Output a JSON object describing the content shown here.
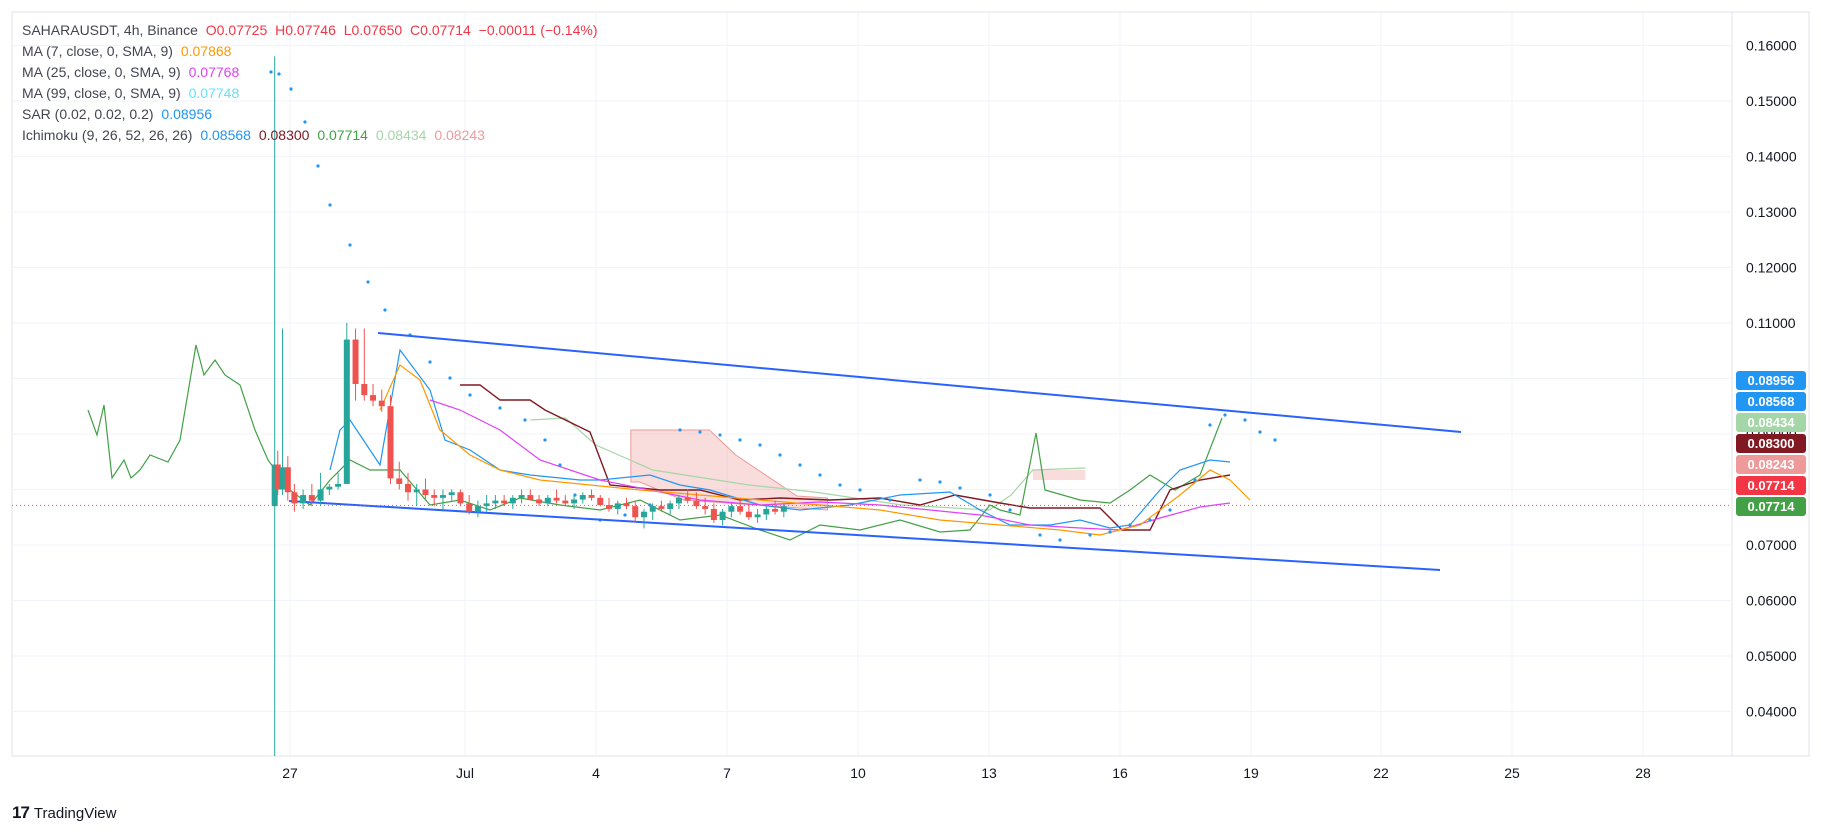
{
  "header": {
    "symbol": "SAHARAUSDT, 4h, Binance",
    "open": "O0.07725",
    "high": "H0.07746",
    "low": "L0.07650",
    "close": "C0.07714",
    "change": "−0.00011 (−0.14%)",
    "ohlc_color": "#f23645"
  },
  "indicators": {
    "ma7": {
      "label": "MA (7, close, 0, SMA, 9)",
      "value": "0.07868",
      "color": "#ff9800"
    },
    "ma25": {
      "label": "MA (25, close, 0, SMA, 9)",
      "value": "0.07768",
      "color": "#e040fb"
    },
    "ma99": {
      "label": "MA (99, close, 0, SMA, 9)",
      "value": "0.07748",
      "color": "#62e3f7"
    },
    "sar": {
      "label": "SAR (0.02, 0.02, 0.2)",
      "value": "0.08956",
      "color": "#2196f3"
    },
    "ichimoku": {
      "label": "Ichimoku (9, 26, 52, 26, 26)",
      "conversion": "0.08568",
      "base": "0.08300",
      "lagging": "0.07714",
      "lead_a": "0.08434",
      "lead_b": "0.08243",
      "colors": {
        "conversion": "#2196f3",
        "base": "#801922",
        "lagging": "#43a047",
        "lead_a": "#a5d6a7",
        "lead_b": "#ef9a9a"
      }
    }
  },
  "price_tags": [
    {
      "value": "0.08956",
      "color": "#2196f3"
    },
    {
      "value": "0.08568",
      "color": "#2196f3"
    },
    {
      "value": "0.08434",
      "color": "#a5d6a7"
    },
    {
      "value": "0.08300",
      "color": "#801922"
    },
    {
      "value": "0.08243",
      "color": "#ef9a9a"
    },
    {
      "value": "0.07714",
      "color": "#f23645"
    },
    {
      "value": "0.07714",
      "color": "#43a047"
    }
  ],
  "brand": {
    "name": "TradingView",
    "mark": "17"
  },
  "chart_data": {
    "type": "candlestick",
    "y_axis_ticks": [
      "0.16000",
      "0.15000",
      "0.14000",
      "0.13000",
      "0.12000",
      "0.11000",
      "0.10000",
      "0.09000",
      "0.08000",
      "0.07000",
      "0.06000",
      "0.05000",
      "0.04000"
    ],
    "x_axis_ticks": [
      "27",
      "Jul",
      "4",
      "7",
      "10",
      "13",
      "16",
      "19",
      "22",
      "25",
      "28"
    ],
    "ylim": [
      0.032,
      0.166
    ],
    "xlim_days": [
      25.3,
      38.5
    ],
    "grid": true,
    "current_price": 0.07714,
    "candles": [
      {
        "t": 26.65,
        "o": 0.077,
        "h": 0.158,
        "l": 0.032,
        "c": 0.0845
      },
      {
        "t": 26.72,
        "o": 0.0845,
        "h": 0.087,
        "l": 0.079,
        "c": 0.08
      },
      {
        "t": 26.83,
        "o": 0.08,
        "h": 0.109,
        "l": 0.079,
        "c": 0.084
      },
      {
        "t": 26.95,
        "o": 0.084,
        "h": 0.086,
        "l": 0.078,
        "c": 0.0795
      },
      {
        "t": 27.1,
        "o": 0.0795,
        "h": 0.081,
        "l": 0.076,
        "c": 0.0775
      },
      {
        "t": 27.3,
        "o": 0.0775,
        "h": 0.08,
        "l": 0.0765,
        "c": 0.079
      },
      {
        "t": 27.5,
        "o": 0.079,
        "h": 0.081,
        "l": 0.077,
        "c": 0.078
      },
      {
        "t": 27.7,
        "o": 0.078,
        "h": 0.083,
        "l": 0.077,
        "c": 0.08
      },
      {
        "t": 27.9,
        "o": 0.08,
        "h": 0.081,
        "l": 0.079,
        "c": 0.0805
      },
      {
        "t": 28.1,
        "o": 0.0805,
        "h": 0.083,
        "l": 0.08,
        "c": 0.081
      },
      {
        "t": 28.3,
        "o": 0.081,
        "h": 0.11,
        "l": 0.081,
        "c": 0.107
      },
      {
        "t": 28.5,
        "o": 0.107,
        "h": 0.109,
        "l": 0.096,
        "c": 0.099
      },
      {
        "t": 28.7,
        "o": 0.099,
        "h": 0.109,
        "l": 0.096,
        "c": 0.097
      },
      {
        "t": 28.9,
        "o": 0.097,
        "h": 0.099,
        "l": 0.095,
        "c": 0.096
      },
      {
        "t": 29.1,
        "o": 0.096,
        "h": 0.098,
        "l": 0.094,
        "c": 0.095
      },
      {
        "t": 29.3,
        "o": 0.095,
        "h": 0.097,
        "l": 0.081,
        "c": 0.082
      },
      {
        "t": 29.5,
        "o": 0.082,
        "h": 0.085,
        "l": 0.08,
        "c": 0.081
      },
      {
        "t": 29.7,
        "o": 0.081,
        "h": 0.083,
        "l": 0.078,
        "c": 0.0795
      },
      {
        "t": 29.9,
        "o": 0.0795,
        "h": 0.081,
        "l": 0.077,
        "c": 0.08
      },
      {
        "t": 30.1,
        "o": 0.08,
        "h": 0.082,
        "l": 0.078,
        "c": 0.079
      },
      {
        "t": 30.3,
        "o": 0.079,
        "h": 0.08,
        "l": 0.077,
        "c": 0.0785
      },
      {
        "t": 30.5,
        "o": 0.0785,
        "h": 0.08,
        "l": 0.076,
        "c": 0.079
      },
      {
        "t": 30.7,
        "o": 0.079,
        "h": 0.08,
        "l": 0.078,
        "c": 0.0795
      },
      {
        "t": 30.9,
        "o": 0.0795,
        "h": 0.08,
        "l": 0.077,
        "c": 0.0775
      },
      {
        "t": 31.1,
        "o": 0.0775,
        "h": 0.079,
        "l": 0.0755,
        "c": 0.076
      },
      {
        "t": 31.3,
        "o": 0.076,
        "h": 0.078,
        "l": 0.075,
        "c": 0.077
      },
      {
        "t": 31.5,
        "o": 0.077,
        "h": 0.079,
        "l": 0.076,
        "c": 0.0775
      },
      {
        "t": 31.7,
        "o": 0.0775,
        "h": 0.079,
        "l": 0.0765,
        "c": 0.078
      },
      {
        "t": 31.9,
        "o": 0.078,
        "h": 0.079,
        "l": 0.077,
        "c": 0.0775
      },
      {
        "t": 32.1,
        "o": 0.0775,
        "h": 0.079,
        "l": 0.0765,
        "c": 0.0785
      },
      {
        "t": 32.3,
        "o": 0.0785,
        "h": 0.08,
        "l": 0.0775,
        "c": 0.079
      },
      {
        "t": 32.5,
        "o": 0.079,
        "h": 0.08,
        "l": 0.078,
        "c": 0.0782
      },
      {
        "t": 32.7,
        "o": 0.0782,
        "h": 0.079,
        "l": 0.077,
        "c": 0.0775
      },
      {
        "t": 32.9,
        "o": 0.0775,
        "h": 0.079,
        "l": 0.077,
        "c": 0.0785
      },
      {
        "t": 33.1,
        "o": 0.0785,
        "h": 0.08,
        "l": 0.0775,
        "c": 0.078
      },
      {
        "t": 33.3,
        "o": 0.078,
        "h": 0.079,
        "l": 0.077,
        "c": 0.0775
      },
      {
        "t": 33.5,
        "o": 0.0775,
        "h": 0.079,
        "l": 0.0765,
        "c": 0.0782
      },
      {
        "t": 33.7,
        "o": 0.0782,
        "h": 0.0795,
        "l": 0.0775,
        "c": 0.079
      },
      {
        "t": 33.9,
        "o": 0.079,
        "h": 0.08,
        "l": 0.078,
        "c": 0.0785
      },
      {
        "t": 34.1,
        "o": 0.0785,
        "h": 0.079,
        "l": 0.077,
        "c": 0.0772
      },
      {
        "t": 34.3,
        "o": 0.0772,
        "h": 0.0785,
        "l": 0.076,
        "c": 0.0765
      },
      {
        "t": 34.5,
        "o": 0.0765,
        "h": 0.078,
        "l": 0.0755,
        "c": 0.0775
      },
      {
        "t": 34.7,
        "o": 0.0775,
        "h": 0.0785,
        "l": 0.0765,
        "c": 0.077
      },
      {
        "t": 34.9,
        "o": 0.077,
        "h": 0.078,
        "l": 0.074,
        "c": 0.075
      },
      {
        "t": 35.1,
        "o": 0.075,
        "h": 0.0765,
        "l": 0.073,
        "c": 0.076
      },
      {
        "t": 35.3,
        "o": 0.076,
        "h": 0.0775,
        "l": 0.0745,
        "c": 0.077
      },
      {
        "t": 35.5,
        "o": 0.077,
        "h": 0.078,
        "l": 0.076,
        "c": 0.0765
      },
      {
        "t": 35.7,
        "o": 0.0765,
        "h": 0.078,
        "l": 0.0755,
        "c": 0.0775
      },
      {
        "t": 35.9,
        "o": 0.0775,
        "h": 0.079,
        "l": 0.0765,
        "c": 0.0785
      },
      {
        "t": 36.1,
        "o": 0.0785,
        "h": 0.08,
        "l": 0.0775,
        "c": 0.078
      },
      {
        "t": 36.3,
        "o": 0.078,
        "h": 0.0795,
        "l": 0.0765,
        "c": 0.077
      },
      {
        "t": 36.5,
        "o": 0.077,
        "h": 0.0785,
        "l": 0.0755,
        "c": 0.0765
      },
      {
        "t": 36.7,
        "o": 0.0765,
        "h": 0.0775,
        "l": 0.074,
        "c": 0.0745
      },
      {
        "t": 36.9,
        "o": 0.0745,
        "h": 0.0765,
        "l": 0.0735,
        "c": 0.076
      },
      {
        "t": 37.1,
        "o": 0.076,
        "h": 0.0775,
        "l": 0.075,
        "c": 0.077
      },
      {
        "t": 37.3,
        "o": 0.077,
        "h": 0.0785,
        "l": 0.0755,
        "c": 0.076
      },
      {
        "t": 37.5,
        "o": 0.076,
        "h": 0.0775,
        "l": 0.0745,
        "c": 0.075
      },
      {
        "t": 37.7,
        "o": 0.075,
        "h": 0.0765,
        "l": 0.074,
        "c": 0.0755
      },
      {
        "t": 37.9,
        "o": 0.0755,
        "h": 0.077,
        "l": 0.0745,
        "c": 0.0765
      },
      {
        "t": 38.1,
        "o": 0.0765,
        "h": 0.078,
        "l": 0.0755,
        "c": 0.076
      },
      {
        "t": 38.3,
        "o": 0.076,
        "h": 0.0775,
        "l": 0.075,
        "c": 0.077
      }
    ]
  }
}
